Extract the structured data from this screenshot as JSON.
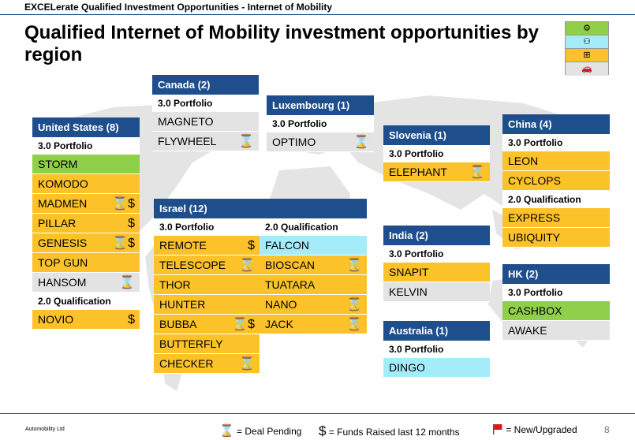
{
  "header": "EXCELerate Qualified Investment Opportunities - Internet of Mobility",
  "title": "Qualified Internet of Mobility investment opportunities by region",
  "legend_icons": [
    {
      "icon": "gear-icon",
      "color": "#8fcf4a",
      "glyph": "⚙"
    },
    {
      "icon": "satellite-icon",
      "color": "#a4ecf9",
      "glyph": "⚇"
    },
    {
      "icon": "chip-icon",
      "color": "#fcc22a",
      "glyph": "⊞"
    },
    {
      "icon": "car-icon",
      "color": "#e3e3e3",
      "glyph": "🚗"
    }
  ],
  "marks": {
    "pending": "⌛",
    "funds": "$"
  },
  "regions": {
    "us": {
      "title": "United States (8)",
      "sections": [
        {
          "label": "3.0 Portfolio",
          "items": [
            {
              "name": "STORM",
              "color": "green",
              "marks": ""
            },
            {
              "name": "KOMODO",
              "color": "orange",
              "marks": ""
            },
            {
              "name": "MADMEN",
              "color": "orange",
              "marks": "⌛$"
            },
            {
              "name": "PILLAR",
              "color": "orange",
              "marks": "$"
            },
            {
              "name": "GENESIS",
              "color": "orange",
              "marks": "⌛$"
            },
            {
              "name": "TOP GUN",
              "color": "orange",
              "marks": ""
            },
            {
              "name": "HANSOM",
              "color": "gray",
              "marks": "⌛"
            }
          ]
        },
        {
          "label": "2.0 Qualification",
          "items": [
            {
              "name": "NOVIO",
              "color": "orange",
              "marks": "$"
            }
          ]
        }
      ]
    },
    "canada": {
      "title": "Canada (2)",
      "sections": [
        {
          "label": "3.0 Portfolio",
          "items": [
            {
              "name": "MAGNETO",
              "color": "gray",
              "marks": ""
            },
            {
              "name": "FLYWHEEL",
              "color": "gray",
              "marks": "⌛"
            }
          ]
        }
      ]
    },
    "luxembourg": {
      "title": "Luxembourg (1)",
      "sections": [
        {
          "label": "3.0 Portfolio",
          "items": [
            {
              "name": "OPTIMO",
              "color": "gray",
              "marks": "⌛"
            }
          ]
        }
      ]
    },
    "slovenia": {
      "title": "Slovenia (1)",
      "sections": [
        {
          "label": "3.0 Portfolio",
          "items": [
            {
              "name": "ELEPHANT",
              "color": "orange",
              "marks": "⌛"
            }
          ]
        }
      ]
    },
    "china": {
      "title": "China (4)",
      "sections": [
        {
          "label": "3.0 Portfolio",
          "items": [
            {
              "name": "LEON",
              "color": "orange",
              "marks": ""
            },
            {
              "name": "CYCLOPS",
              "color": "orange",
              "marks": ""
            }
          ]
        },
        {
          "label": "2.0 Qualification",
          "items": [
            {
              "name": "EXPRESS",
              "color": "orange",
              "marks": ""
            },
            {
              "name": "UBIQUITY",
              "color": "orange",
              "marks": ""
            }
          ]
        }
      ]
    },
    "israel": {
      "title": "Israel (12)",
      "col1": {
        "label": "3.0 Portfolio",
        "items": [
          {
            "name": "REMOTE",
            "color": "orange",
            "marks": "$"
          },
          {
            "name": "TELESCOPE",
            "color": "orange",
            "marks": "⌛"
          },
          {
            "name": "THOR",
            "color": "orange",
            "marks": ""
          },
          {
            "name": "HUNTER",
            "color": "orange",
            "marks": ""
          },
          {
            "name": "BUBBA",
            "color": "orange",
            "marks": "⌛$"
          },
          {
            "name": "BUTTERFLY",
            "color": "orange",
            "marks": ""
          },
          {
            "name": "CHECKER",
            "color": "orange",
            "marks": "⌛"
          }
        ]
      },
      "col2": {
        "label": "2.0 Qualification",
        "items": [
          {
            "name": "FALCON",
            "color": "cyan",
            "marks": ""
          },
          {
            "name": "BIOSCAN",
            "color": "orange",
            "marks": "⌛"
          },
          {
            "name": "TUATARA",
            "color": "orange",
            "marks": ""
          },
          {
            "name": "NANO",
            "color": "orange",
            "marks": "⌛"
          },
          {
            "name": "JACK",
            "color": "orange",
            "marks": "⌛"
          }
        ]
      }
    },
    "india": {
      "title": "India (2)",
      "sections": [
        {
          "label": "3.0 Portfolio",
          "items": [
            {
              "name": "SNAPIT",
              "color": "orange",
              "marks": ""
            },
            {
              "name": "KELVIN",
              "color": "gray",
              "marks": ""
            }
          ]
        }
      ]
    },
    "hk": {
      "title": "HK (2)",
      "sections": [
        {
          "label": "3.0 Portfolio",
          "items": [
            {
              "name": "CASHBOX",
              "color": "green",
              "marks": ""
            },
            {
              "name": "AWAKE",
              "color": "gray",
              "marks": ""
            }
          ]
        }
      ]
    },
    "australia": {
      "title": "Australia (1)",
      "sections": [
        {
          "label": "3.0 Portfolio",
          "items": [
            {
              "name": "DINGO",
              "color": "cyan",
              "marks": ""
            }
          ]
        }
      ]
    }
  },
  "footer": {
    "company": "Automobility Ltd",
    "legend_pending": "= Deal Pending",
    "legend_funds": "= Funds Raised last 12 months",
    "legend_new": "= New/Upgraded",
    "flag_color": "#e0161e",
    "page": "8"
  }
}
